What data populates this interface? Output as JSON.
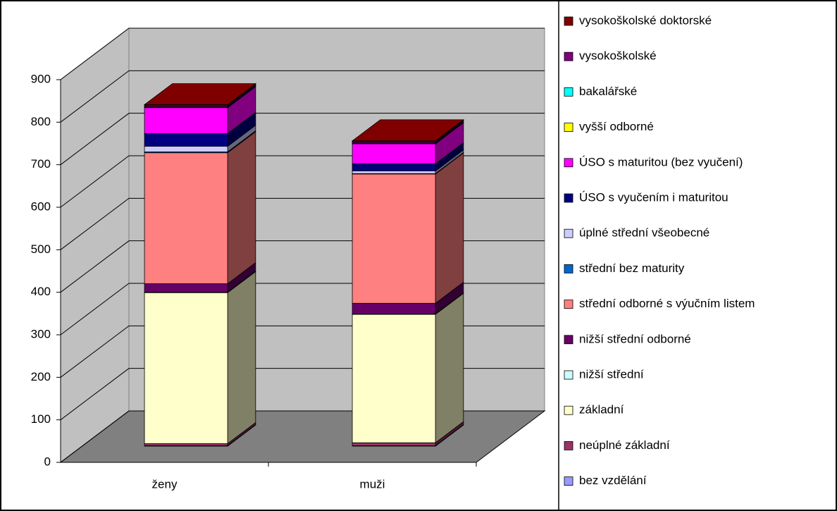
{
  "chart_data": {
    "type": "bar",
    "stacked": true,
    "three_d": true,
    "grid": true,
    "legend": "right",
    "categories": [
      "ženy",
      "muži"
    ],
    "ylim": [
      0,
      900
    ],
    "yticks": [
      0,
      100,
      200,
      300,
      400,
      500,
      600,
      700,
      800,
      900
    ],
    "series": [
      {
        "name": "bez vzdělání",
        "color": "#9999ff",
        "values": [
          1,
          1
        ]
      },
      {
        "name": "neúplné základní",
        "color": "#993366",
        "values": [
          5,
          7
        ]
      },
      {
        "name": "základní",
        "color": "#ffffcc",
        "values": [
          355,
          302
        ]
      },
      {
        "name": "nižší střední",
        "color": "#ccffff",
        "values": [
          1,
          1
        ]
      },
      {
        "name": "nižší střední odborné",
        "color": "#660066",
        "values": [
          20,
          25
        ]
      },
      {
        "name": "střední odborné s výučním listem",
        "color": "#ff8080",
        "values": [
          308,
          304
        ]
      },
      {
        "name": "střední bez maturity",
        "color": "#0066cc",
        "values": [
          2,
          1
        ]
      },
      {
        "name": "úplné střední všeobecné",
        "color": "#ccccff",
        "values": [
          13,
          6
        ]
      },
      {
        "name": "ÚSO s vyučením i maturitou",
        "color": "#000080",
        "values": [
          30,
          17
        ]
      },
      {
        "name": "ÚSO s maturitou (bez vyučení)",
        "color": "#ff00ff",
        "values": [
          61,
          47
        ]
      },
      {
        "name": "vyšší odborné",
        "color": "#ffff00",
        "values": [
          1,
          1
        ]
      },
      {
        "name": "bakalářské",
        "color": "#00ffff",
        "values": [
          1,
          1
        ]
      },
      {
        "name": "vysokoškolské",
        "color": "#800080",
        "values": [
          3,
          3
        ]
      },
      {
        "name": "vysokoškolské doktorské",
        "color": "#800000",
        "values": [
          2,
          2
        ]
      }
    ]
  }
}
